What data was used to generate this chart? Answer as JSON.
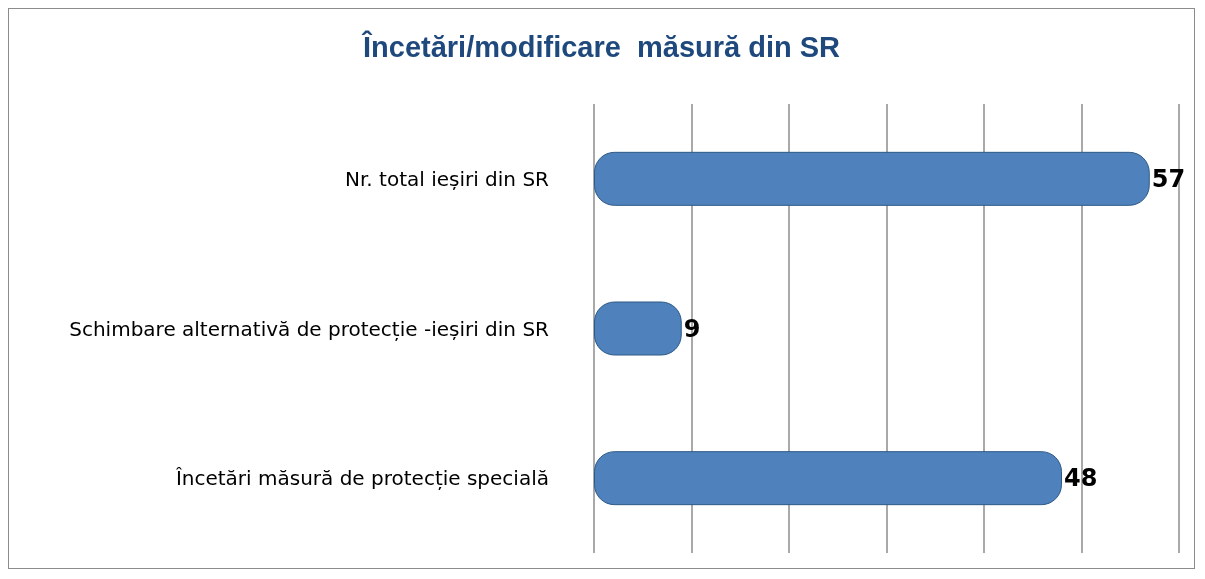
{
  "chart_data": {
    "type": "bar",
    "orientation": "horizontal",
    "title": "Încetări/modificare  măsură din SR",
    "categories": [
      "Nr. total ieșiri din SR",
      "Schimbare alternativă de protecție -ieșiri din SR",
      "Încetări măsură de protecție specială"
    ],
    "values": [
      57,
      9,
      48
    ],
    "color": "#4f81bd",
    "xlim": [
      0,
      60
    ],
    "xticks": [
      {
        "value": 0,
        "label": null
      },
      {
        "value": 10,
        "label": null
      },
      {
        "value": 20,
        "label": null
      },
      {
        "value": 30,
        "label": null
      },
      {
        "value": 40,
        "label": null
      },
      {
        "value": 50,
        "label": null
      },
      {
        "value": 60,
        "label": null
      }
    ],
    "grid": "x",
    "data_labels": true
  }
}
